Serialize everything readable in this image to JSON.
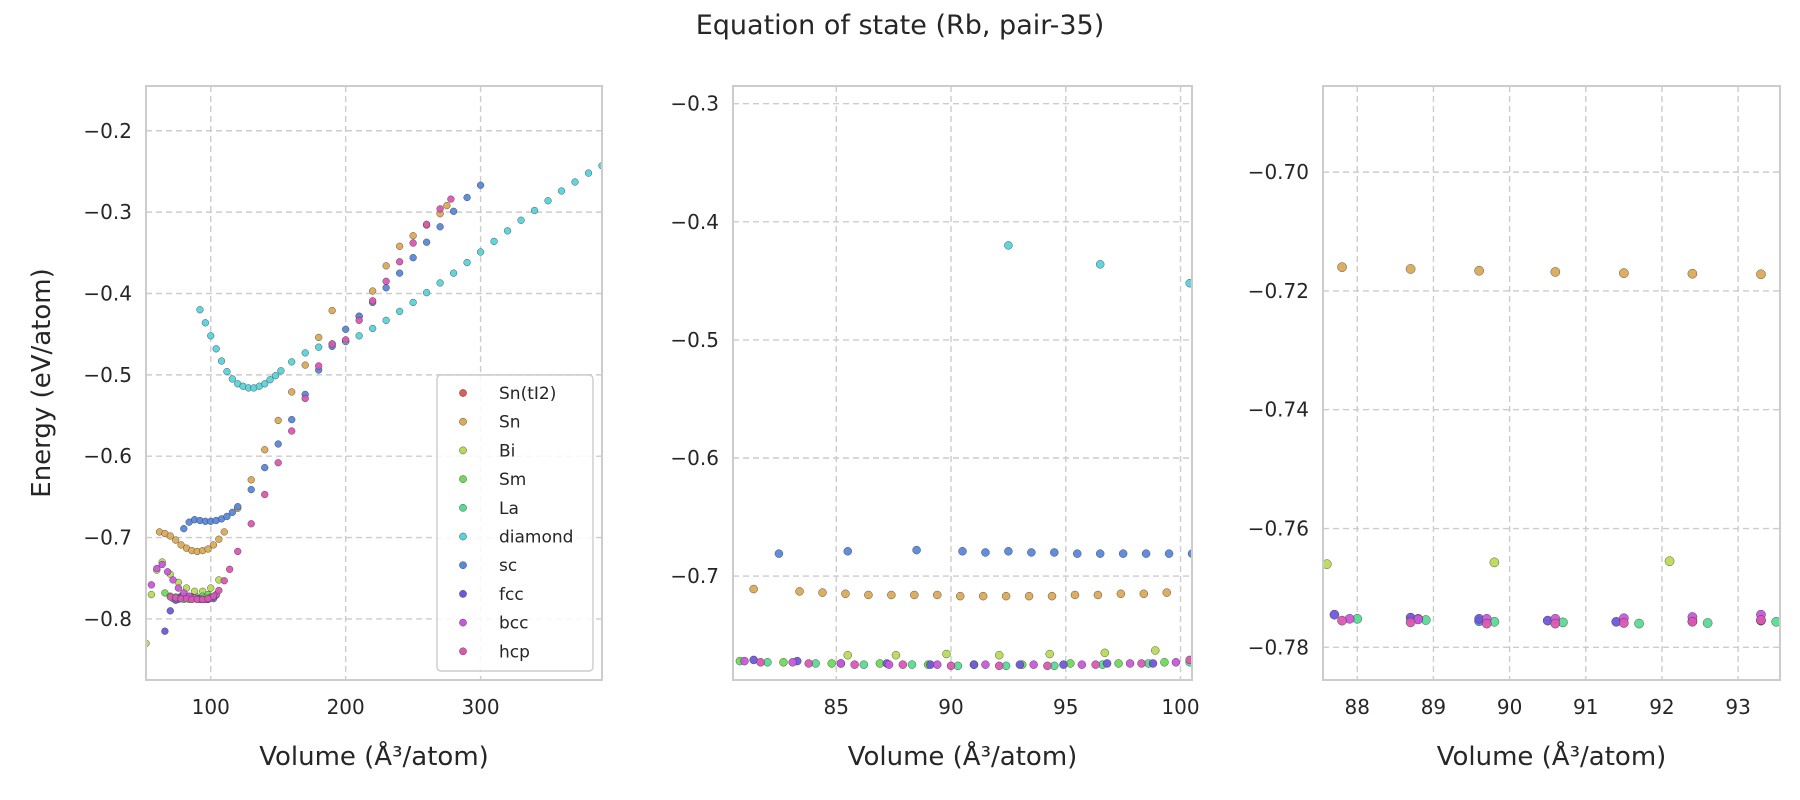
{
  "figure_title": "Equation of state (Rb, pair-35)",
  "colors": {
    "Sn(tI2)": "#db5f57",
    "Sn": "#dbaa57",
    "Bi": "#b8db57",
    "Sm": "#6ddb57",
    "La": "#57db94",
    "diamond": "#57d3db",
    "sc": "#5788db",
    "fcc": "#6f57db",
    "bcc": "#c957db",
    "hcp": "#db57b2",
    "grid": "#cccccc",
    "frame": "#cccccc",
    "text": "#262626"
  },
  "chart_data": [
    {
      "type": "scatter",
      "title": "",
      "xlabel": "Volume (Å³/atom)",
      "ylabel": "Energy (eV/atom)",
      "xlim": [
        52,
        390
      ],
      "ylim": [
        -0.875,
        -0.145
      ],
      "xticks": [
        100,
        200,
        300
      ],
      "yticks": [
        -0.8,
        -0.7,
        -0.6,
        -0.5,
        -0.4,
        -0.3,
        -0.2
      ],
      "xtick_labels": [
        "100",
        "200",
        "300"
      ],
      "ytick_labels": [
        "−0.8",
        "−0.7",
        "−0.6",
        "−0.5",
        "−0.4",
        "−0.3",
        "−0.2"
      ],
      "grid": true,
      "legend_position": "lower right",
      "legend": [
        "Sn(tI2)",
        "Sn",
        "Bi",
        "Sm",
        "La",
        "diamond",
        "sc",
        "fcc",
        "bcc",
        "hcp"
      ],
      "series": [
        {
          "name": "Sn",
          "x": [
            62,
            66,
            70,
            74,
            78,
            82,
            86,
            90,
            94,
            98,
            102,
            106,
            110,
            120,
            130,
            140,
            150,
            160,
            170,
            180,
            190,
            200,
            210,
            220,
            230,
            240,
            250,
            260,
            270,
            275
          ],
          "y": [
            -0.693,
            -0.695,
            -0.698,
            -0.703,
            -0.709,
            -0.713,
            -0.716,
            -0.717,
            -0.716,
            -0.714,
            -0.709,
            -0.702,
            -0.693,
            -0.664,
            -0.629,
            -0.592,
            -0.556,
            -0.521,
            -0.488,
            -0.454,
            -0.421,
            -0.459,
            -0.428,
            -0.397,
            -0.366,
            -0.342,
            -0.329,
            -0.316,
            -0.302,
            -0.292
          ]
        },
        {
          "name": "Bi",
          "x": [
            52,
            56,
            60,
            64,
            70,
            76,
            82,
            88,
            94,
            100,
            106
          ],
          "y": [
            -0.83,
            -0.77,
            -0.74,
            -0.73,
            -0.745,
            -0.755,
            -0.762,
            -0.766,
            -0.766,
            -0.762,
            -0.752
          ]
        },
        {
          "name": "Sm",
          "x": [
            66,
            70,
            74,
            78,
            82,
            86,
            90,
            94,
            98
          ],
          "y": [
            -0.768,
            -0.772,
            -0.773,
            -0.772,
            -0.772,
            -0.773,
            -0.773,
            -0.772,
            -0.77
          ]
        },
        {
          "name": "La",
          "x": [
            72,
            76,
            80,
            84,
            88,
            92,
            96,
            100,
            104
          ],
          "y": [
            -0.775,
            -0.776,
            -0.776,
            -0.776,
            -0.775,
            -0.775,
            -0.774,
            -0.773,
            -0.771
          ]
        },
        {
          "name": "diamond",
          "x": [
            92,
            96,
            100,
            104,
            108,
            112,
            116,
            120,
            124,
            128,
            132,
            136,
            140,
            144,
            148,
            152,
            160,
            170,
            180,
            190,
            200,
            210,
            220,
            230,
            240,
            250,
            260,
            270,
            280,
            290,
            300,
            310,
            320,
            330,
            340,
            350,
            360,
            370,
            380,
            390
          ],
          "y": [
            -0.42,
            -0.436,
            -0.452,
            -0.468,
            -0.483,
            -0.496,
            -0.505,
            -0.511,
            -0.514,
            -0.516,
            -0.516,
            -0.514,
            -0.511,
            -0.506,
            -0.501,
            -0.495,
            -0.484,
            -0.473,
            -0.466,
            -0.462,
            -0.459,
            -0.452,
            -0.443,
            -0.433,
            -0.422,
            -0.411,
            -0.399,
            -0.387,
            -0.375,
            -0.362,
            -0.349,
            -0.336,
            -0.323,
            -0.31,
            -0.298,
            -0.286,
            -0.274,
            -0.263,
            -0.252,
            -0.243
          ]
        },
        {
          "name": "sc",
          "x": [
            80,
            84,
            88,
            92,
            96,
            100,
            104,
            108,
            112,
            116,
            120,
            130,
            140,
            150,
            160,
            170,
            180,
            190,
            200,
            210,
            220,
            230,
            240,
            250,
            260,
            270,
            280,
            290,
            300
          ],
          "y": [
            -0.689,
            -0.681,
            -0.678,
            -0.679,
            -0.68,
            -0.68,
            -0.679,
            -0.677,
            -0.674,
            -0.669,
            -0.662,
            -0.641,
            -0.614,
            -0.585,
            -0.555,
            -0.524,
            -0.494,
            -0.465,
            -0.444,
            -0.428,
            -0.411,
            -0.393,
            -0.375,
            -0.356,
            -0.337,
            -0.318,
            -0.299,
            -0.282,
            -0.267
          ]
        },
        {
          "name": "fcc",
          "x": [
            66,
            70,
            74,
            78,
            82,
            86,
            90,
            94,
            98,
            102
          ],
          "y": [
            -0.815,
            -0.79,
            -0.777,
            -0.773,
            -0.773,
            -0.773,
            -0.775,
            -0.776,
            -0.776,
            -0.775
          ]
        },
        {
          "name": "bcc",
          "x": [
            56,
            60,
            64,
            68,
            72,
            76,
            80,
            84,
            88,
            92,
            96,
            100,
            104
          ],
          "y": [
            -0.758,
            -0.738,
            -0.733,
            -0.742,
            -0.752,
            -0.762,
            -0.768,
            -0.772,
            -0.774,
            -0.776,
            -0.776,
            -0.774,
            -0.77
          ]
        },
        {
          "name": "hcp",
          "x": [
            70,
            74,
            78,
            82,
            86,
            90,
            94,
            98,
            102,
            106,
            110,
            114,
            120,
            130,
            140,
            150,
            160,
            170,
            180,
            190,
            200,
            210,
            220,
            230,
            240,
            250,
            260,
            270,
            278
          ],
          "y": [
            -0.773,
            -0.774,
            -0.775,
            -0.775,
            -0.776,
            -0.776,
            -0.776,
            -0.775,
            -0.772,
            -0.765,
            -0.753,
            -0.739,
            -0.717,
            -0.683,
            -0.647,
            -0.608,
            -0.569,
            -0.529,
            -0.489,
            -0.462,
            -0.457,
            -0.433,
            -0.409,
            -0.385,
            -0.361,
            -0.338,
            -0.315,
            -0.296,
            -0.284
          ]
        }
      ]
    },
    {
      "type": "scatter",
      "title": "",
      "xlabel": "Volume (Å³/atom)",
      "ylabel": "",
      "xlim": [
        80.5,
        100.5
      ],
      "ylim": [
        -0.788,
        -0.285
      ],
      "xticks": [
        85,
        90,
        95,
        100
      ],
      "yticks": [
        -0.7,
        -0.6,
        -0.5,
        -0.4,
        -0.3
      ],
      "xtick_labels": [
        "85",
        "90",
        "95",
        "100"
      ],
      "ytick_labels": [
        "−0.7",
        "−0.6",
        "−0.5",
        "−0.4",
        "−0.3"
      ],
      "grid": true,
      "series": [
        {
          "name": "Sn",
          "x": [
            81.4,
            83.4,
            84.4,
            85.4,
            86.4,
            87.4,
            88.4,
            89.4,
            90.4,
            91.4,
            92.4,
            93.4,
            94.4,
            95.4,
            96.4,
            97.4,
            98.4,
            99.4
          ],
          "y": [
            -0.711,
            -0.713,
            -0.714,
            -0.715,
            -0.716,
            -0.716,
            -0.716,
            -0.716,
            -0.717,
            -0.717,
            -0.717,
            -0.717,
            -0.717,
            -0.716,
            -0.716,
            -0.715,
            -0.715,
            -0.714
          ]
        },
        {
          "name": "Bi",
          "x": [
            85.5,
            87.6,
            89.8,
            92.1,
            94.3,
            96.7,
            98.9
          ],
          "y": [
            -0.767,
            -0.767,
            -0.766,
            -0.767,
            -0.766,
            -0.765,
            -0.763
          ]
        },
        {
          "name": "Sm",
          "x": [
            80.8,
            82.7,
            84.8,
            86.9,
            89.0,
            91.0,
            93.1,
            95.2,
            97.3,
            99.3
          ],
          "y": [
            -0.772,
            -0.773,
            -0.774,
            -0.774,
            -0.775,
            -0.775,
            -0.775,
            -0.774,
            -0.774,
            -0.773
          ]
        },
        {
          "name": "La",
          "x": [
            82.0,
            84.1,
            86.2,
            88.3,
            90.3,
            92.4,
            94.5,
            96.6,
            98.6,
            100.4
          ],
          "y": [
            -0.773,
            -0.774,
            -0.775,
            -0.775,
            -0.776,
            -0.776,
            -0.776,
            -0.775,
            -0.774,
            -0.773
          ]
        },
        {
          "name": "diamond",
          "x": [
            92.5,
            96.5,
            100.4
          ],
          "y": [
            -0.42,
            -0.436,
            -0.452
          ]
        },
        {
          "name": "sc",
          "x": [
            82.5,
            85.5,
            88.5,
            90.5,
            91.5,
            92.5,
            93.5,
            94.5,
            95.5,
            96.5,
            97.5,
            98.5,
            99.5,
            100.5
          ],
          "y": [
            -0.681,
            -0.679,
            -0.678,
            -0.679,
            -0.68,
            -0.679,
            -0.68,
            -0.68,
            -0.681,
            -0.681,
            -0.681,
            -0.681,
            -0.681,
            -0.681
          ]
        },
        {
          "name": "fcc",
          "x": [
            81.4,
            83.3,
            85.2,
            87.2,
            89.1,
            91.0,
            93.0,
            94.9,
            96.8,
            98.8
          ],
          "y": [
            -0.771,
            -0.772,
            -0.774,
            -0.774,
            -0.775,
            -0.775,
            -0.775,
            -0.775,
            -0.774,
            -0.774
          ]
        },
        {
          "name": "bcc",
          "x": [
            81.0,
            83.1,
            85.2,
            87.3,
            89.4,
            91.5,
            93.6,
            95.7,
            97.8,
            99.8
          ],
          "y": [
            -0.772,
            -0.773,
            -0.774,
            -0.775,
            -0.775,
            -0.775,
            -0.775,
            -0.775,
            -0.774,
            -0.773
          ]
        },
        {
          "name": "hcp",
          "x": [
            81.7,
            83.8,
            85.8,
            87.9,
            90.0,
            92.1,
            94.2,
            96.3,
            98.3,
            100.4
          ],
          "y": [
            -0.773,
            -0.774,
            -0.775,
            -0.775,
            -0.776,
            -0.776,
            -0.776,
            -0.775,
            -0.774,
            -0.771
          ]
        }
      ]
    },
    {
      "type": "scatter",
      "title": "",
      "xlabel": "Volume (Å³/atom)",
      "ylabel": "",
      "xlim": [
        87.55,
        93.55
      ],
      "ylim": [
        -0.7855,
        -0.6855
      ],
      "xticks": [
        88,
        89,
        90,
        91,
        92,
        93
      ],
      "yticks": [
        -0.78,
        -0.76,
        -0.74,
        -0.72,
        -0.7
      ],
      "xtick_labels": [
        "88",
        "89",
        "90",
        "91",
        "92",
        "93"
      ],
      "ytick_labels": [
        "−0.78",
        "−0.76",
        "−0.74",
        "−0.72",
        "−0.70"
      ],
      "grid": true,
      "series": [
        {
          "name": "Sn",
          "x": [
            87.8,
            88.7,
            89.6,
            90.6,
            91.5,
            92.4,
            93.3
          ],
          "y": [
            -0.716,
            -0.7163,
            -0.7166,
            -0.7168,
            -0.717,
            -0.7171,
            -0.7172
          ]
        },
        {
          "name": "Bi",
          "x": [
            87.6,
            89.8,
            92.1
          ],
          "y": [
            -0.766,
            -0.7657,
            -0.7655
          ]
        },
        {
          "name": "La",
          "x": [
            88.0,
            88.9,
            89.8,
            90.7,
            91.7,
            92.6,
            93.5
          ],
          "y": [
            -0.7752,
            -0.7754,
            -0.7757,
            -0.7758,
            -0.776,
            -0.7759,
            -0.7757
          ]
        },
        {
          "name": "sc",
          "x": [
            88.8,
            89.6
          ],
          "y": [
            -0.7752,
            -0.7756
          ]
        },
        {
          "name": "fcc",
          "x": [
            87.7,
            88.7,
            89.6,
            90.5,
            91.4,
            92.4,
            93.3
          ],
          "y": [
            -0.7745,
            -0.775,
            -0.7752,
            -0.7755,
            -0.7757,
            -0.7756,
            -0.7755
          ]
        },
        {
          "name": "bcc",
          "x": [
            87.9,
            88.8,
            89.7,
            90.6,
            91.5,
            92.4,
            93.3
          ],
          "y": [
            -0.7752,
            -0.7753,
            -0.7752,
            -0.7752,
            -0.7751,
            -0.7749,
            -0.7745
          ]
        },
        {
          "name": "hcp",
          "x": [
            87.8,
            88.7,
            89.7,
            90.6,
            91.5,
            92.4,
            93.3
          ],
          "y": [
            -0.7755,
            -0.7758,
            -0.776,
            -0.776,
            -0.7759,
            -0.7757,
            -0.7754
          ]
        }
      ]
    }
  ]
}
